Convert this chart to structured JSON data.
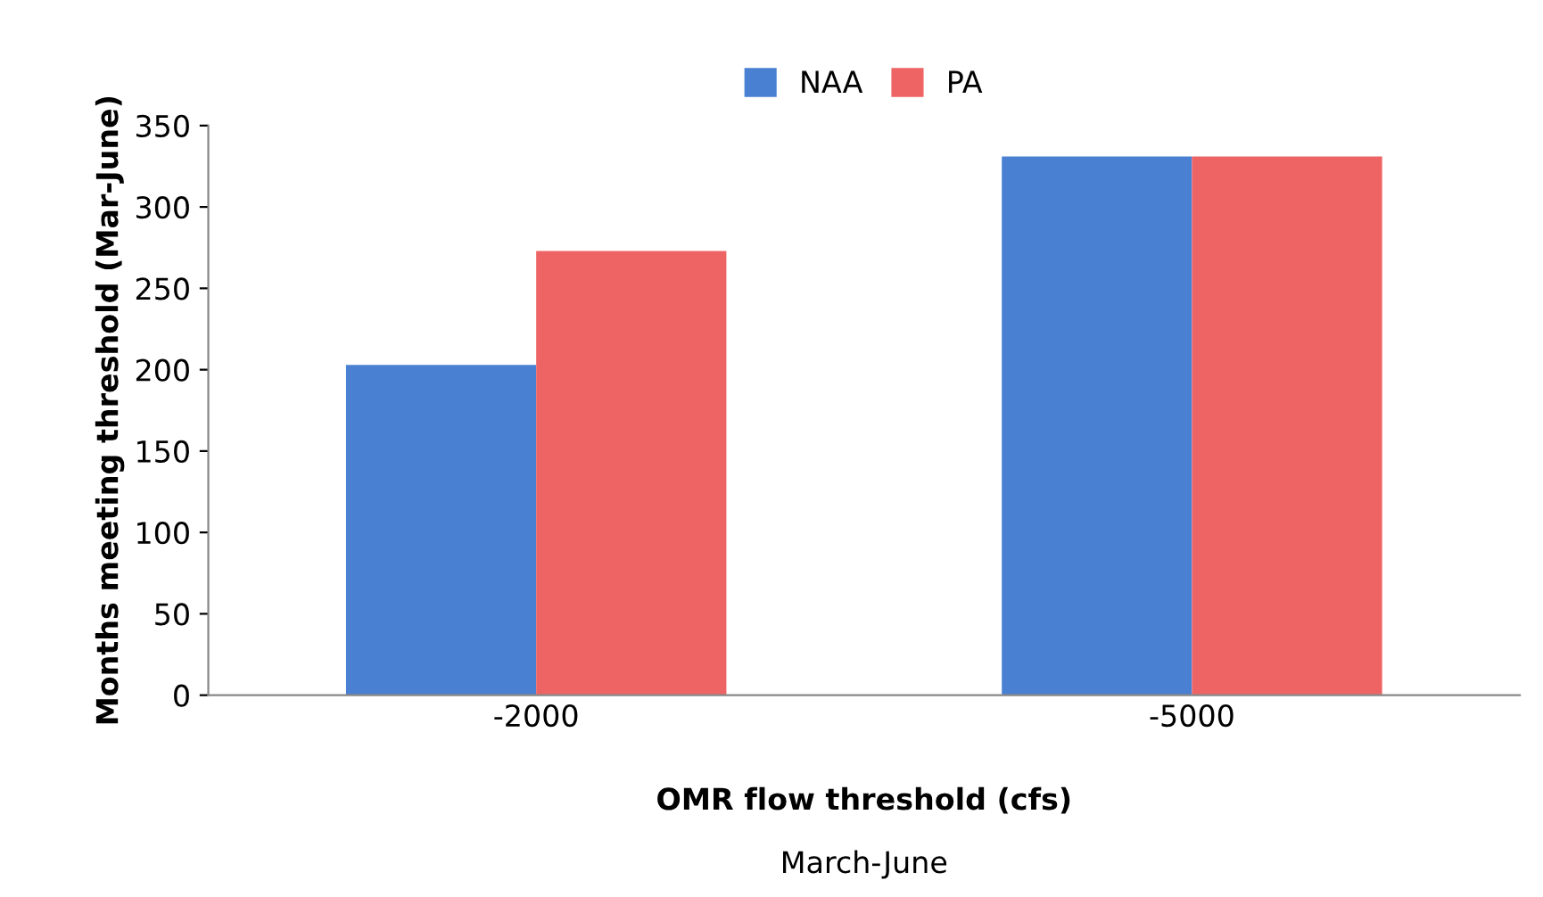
{
  "chart_data": {
    "type": "bar",
    "categories": [
      "-2000",
      "-5000"
    ],
    "series": [
      {
        "name": "NAA",
        "color": "#4a80d2",
        "values": [
          203,
          331
        ]
      },
      {
        "name": "PA",
        "color": "#ee6464",
        "values": [
          273,
          331
        ]
      }
    ],
    "xlabel": "OMR flow threshold (cfs)",
    "ylabel": "Months meeting threshold (Mar-June)",
    "annotations": [
      "March-June"
    ],
    "ylim": [
      0,
      350
    ],
    "yticks": [
      0,
      50,
      100,
      150,
      200,
      250,
      300,
      350
    ],
    "grid": false,
    "legend": "top"
  }
}
